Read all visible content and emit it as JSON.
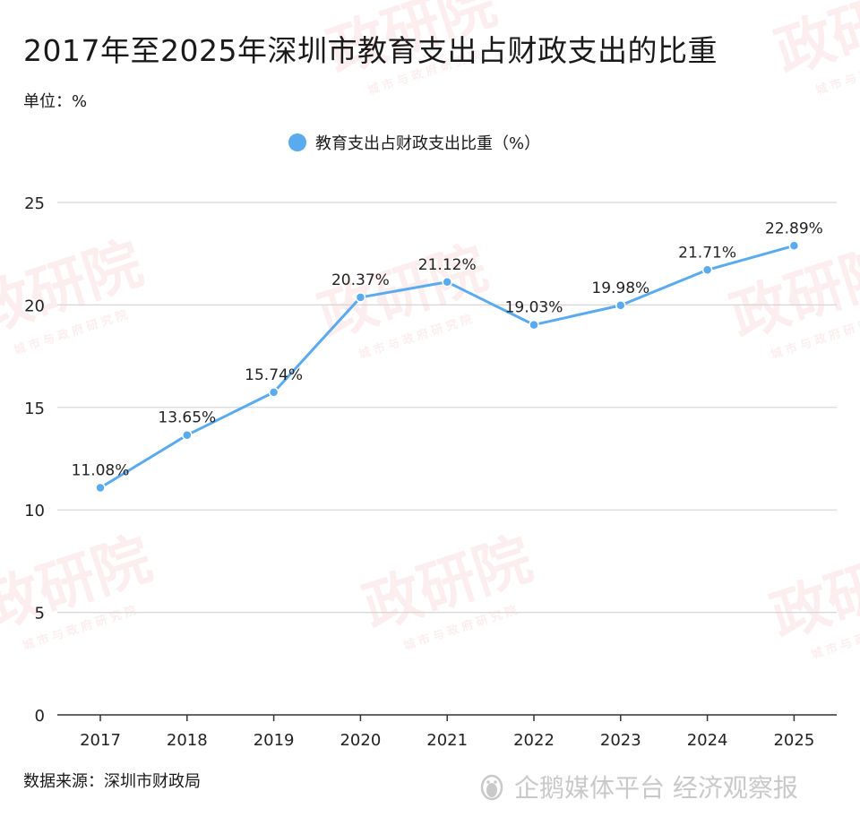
{
  "title": "2017年至2025年深圳市教育支出占财政支出的比重",
  "unit_label": "单位：%",
  "source_label": "数据来源：深圳市财政局",
  "brand_text": "企鹅媒体平台 经济观察报",
  "watermark": {
    "main": "政研院",
    "sub": "城市与政府研究院"
  },
  "colors": {
    "series": "#5aaaf0",
    "grid": "#d6d6d6",
    "axis": "#333333"
  },
  "chart_data": {
    "type": "line",
    "title": "2017年至2025年深圳市教育支出占财政支出的比重",
    "xlabel": "",
    "ylabel": "",
    "ylim": [
      0,
      25
    ],
    "yticks": [
      "0",
      "5",
      "10",
      "15",
      "20",
      "25"
    ],
    "categories": [
      "2017",
      "2018",
      "2019",
      "2020",
      "2021",
      "2022",
      "2023",
      "2024",
      "2025"
    ],
    "series": [
      {
        "name": "教育支出占财政支出比重（%）",
        "values": [
          11.08,
          13.65,
          15.74,
          20.37,
          21.12,
          19.03,
          19.98,
          21.71,
          22.89
        ],
        "labels": [
          "11.08%",
          "13.65%",
          "15.74%",
          "20.37%",
          "21.12%",
          "19.03%",
          "19.98%",
          "21.71%",
          "22.89%"
        ]
      }
    ],
    "grid": true,
    "legend": "top-center"
  }
}
